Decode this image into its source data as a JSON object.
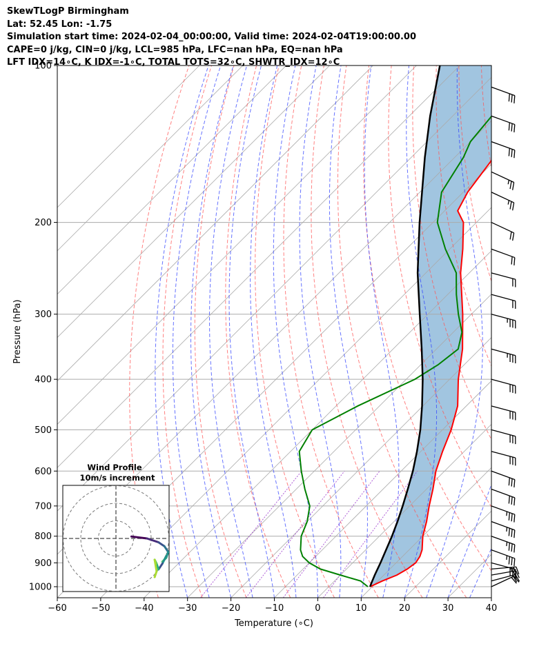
{
  "header": {
    "line1": "SkewTLogP Birmingham",
    "line2": "Lat: 52.45   Lon: -1.75",
    "line3": "Simulation start time: 2024-02-04_00:00:00, Valid time: 2024-02-04T19:00:00.00",
    "line4": "CAPE=0 j/kg, CIN=0 j/kg, LCL=985 hPa, LFC=nan hPa, EQ=nan hPa",
    "line5": "LFT IDX=14∘C, K IDX=-1∘C, TOTAL TOTS=32∘C, SHWTR_IDX=12∘C"
  },
  "chart_data": {
    "type": "line",
    "subtype": "skew-t log-p diagram",
    "xlabel": "Temperature (∘C)",
    "ylabel": "Pressure (hPa)",
    "xlim": [
      -60,
      40
    ],
    "ylim": [
      1050,
      100
    ],
    "y_scale": "log",
    "x_ticks": [
      -60,
      -50,
      -40,
      -30,
      -20,
      -10,
      0,
      10,
      20,
      30,
      40
    ],
    "x_tick_labels": [
      "−60",
      "−50",
      "−40",
      "−30",
      "−20",
      "−10",
      "0",
      "10",
      "20",
      "30",
      "40"
    ],
    "y_ticks": [
      1000,
      900,
      800,
      700,
      600,
      500,
      400,
      300,
      200,
      100
    ],
    "grid": true,
    "colors": {
      "temperature": "#ff0000",
      "dewpoint": "#008000",
      "parcel": "#000000",
      "shade": "#a1c5e0",
      "dry_adiabats": "#ff5555",
      "moist_adiabats": "#3344ff",
      "mixing_ratio": "#9933cc",
      "isotherms": "#aaaaaa"
    },
    "series": [
      {
        "pressure": [
          1000,
          975,
          950,
          925,
          900,
          875,
          850,
          800,
          750,
          700,
          650,
          600,
          550,
          500,
          450,
          400,
          350,
          300,
          250,
          225,
          200,
          190,
          175,
          150,
          140,
          125,
          100
        ],
        "values": [
          9.5,
          11,
          13,
          14,
          14.5,
          14,
          13,
          10,
          7.5,
          4.5,
          1.5,
          -2,
          -5,
          -8,
          -12,
          -18,
          -24,
          -32,
          -42,
          -47,
          -53,
          -57,
          -59,
          -61,
          -63,
          -63,
          -65
        ]
      },
      {
        "pressure": [
          1000,
          975,
          950,
          925,
          900,
          875,
          850,
          800,
          750,
          700,
          650,
          600,
          550,
          500,
          450,
          400,
          375,
          350,
          325,
          300,
          275,
          250,
          225,
          200,
          175,
          150,
          140,
          125,
          100
        ],
        "values": [
          9,
          6,
          0,
          -6,
          -10,
          -13,
          -15,
          -18,
          -20,
          -23,
          -28,
          -33,
          -38,
          -40,
          -35,
          -28,
          -26,
          -25,
          -28,
          -33,
          -38,
          -43,
          -51,
          -59,
          -65,
          -68,
          -70,
          -71,
          -78
        ]
      },
      {
        "pressure": [
          1000,
          985,
          950,
          900,
          850,
          800,
          750,
          700,
          650,
          600,
          550,
          500,
          450,
          400,
          350,
          300,
          250,
          200,
          150,
          125,
          100
        ],
        "values": [
          9.5,
          9.0,
          7.9,
          6.4,
          4.7,
          2.9,
          0.8,
          -1.6,
          -4.3,
          -7.3,
          -10.9,
          -15.1,
          -20.2,
          -26.2,
          -33.4,
          -41.9,
          -51.9,
          -63.1,
          -76.9,
          -85.2,
          -94.6
        ]
      }
    ],
    "wind_barbs": [
      {
        "pressure": 1000,
        "direction": 245,
        "speed": 20
      },
      {
        "pressure": 975,
        "direction": 255,
        "speed": 20
      },
      {
        "pressure": 950,
        "direction": 260,
        "speed": 20
      },
      {
        "pressure": 925,
        "direction": 265,
        "speed": 25
      },
      {
        "pressure": 900,
        "direction": 285,
        "speed": 30
      },
      {
        "pressure": 850,
        "direction": 290,
        "speed": 35
      },
      {
        "pressure": 800,
        "direction": 290,
        "speed": 35
      },
      {
        "pressure": 750,
        "direction": 290,
        "speed": 35
      },
      {
        "pressure": 700,
        "direction": 290,
        "speed": 35
      },
      {
        "pressure": 650,
        "direction": 290,
        "speed": 30
      },
      {
        "pressure": 600,
        "direction": 290,
        "speed": 30
      },
      {
        "pressure": 550,
        "direction": 285,
        "speed": 30
      },
      {
        "pressure": 500,
        "direction": 285,
        "speed": 30
      },
      {
        "pressure": 450,
        "direction": 285,
        "speed": 30
      },
      {
        "pressure": 400,
        "direction": 285,
        "speed": 30
      },
      {
        "pressure": 350,
        "direction": 285,
        "speed": 35
      },
      {
        "pressure": 300,
        "direction": 285,
        "speed": 35
      },
      {
        "pressure": 275,
        "direction": 285,
        "speed": 20
      },
      {
        "pressure": 250,
        "direction": 285,
        "speed": 20
      },
      {
        "pressure": 225,
        "direction": 290,
        "speed": 20
      },
      {
        "pressure": 200,
        "direction": 295,
        "speed": 20
      },
      {
        "pressure": 175,
        "direction": 295,
        "speed": 25
      },
      {
        "pressure": 160,
        "direction": 295,
        "speed": 25
      },
      {
        "pressure": 140,
        "direction": 290,
        "speed": 30
      },
      {
        "pressure": 125,
        "direction": 290,
        "speed": 30
      },
      {
        "pressure": 110,
        "direction": 290,
        "speed": 30
      }
    ],
    "hodograph": {
      "title": "Wind Profile",
      "subtitle": "10m/s increment",
      "rings": [
        10,
        20,
        30
      ],
      "u": [
        4.0,
        8.0,
        11.0,
        12.5,
        13.5,
        13.0,
        12.0,
        12.5,
        13.0,
        12.0,
        11.0,
        10.5,
        10.0,
        10.5,
        10.0
      ],
      "v": [
        0.5,
        0.0,
        -1.0,
        -2.0,
        -3.5,
        -5.0,
        -6.0,
        -5.5,
        -4.5,
        -6.5,
        -8.0,
        -6.5,
        -5.5,
        -8.5,
        -10.0
      ],
      "colors": [
        "#440154",
        "#440154",
        "#472c7a",
        "#3b518b",
        "#2c718e",
        "#21908d",
        "#27ad81",
        "#5cc863",
        "#aadc32",
        "#21908d",
        "#3b518b",
        "#27ad81",
        "#5cc863",
        "#aadc32",
        "#aadc32"
      ]
    }
  }
}
